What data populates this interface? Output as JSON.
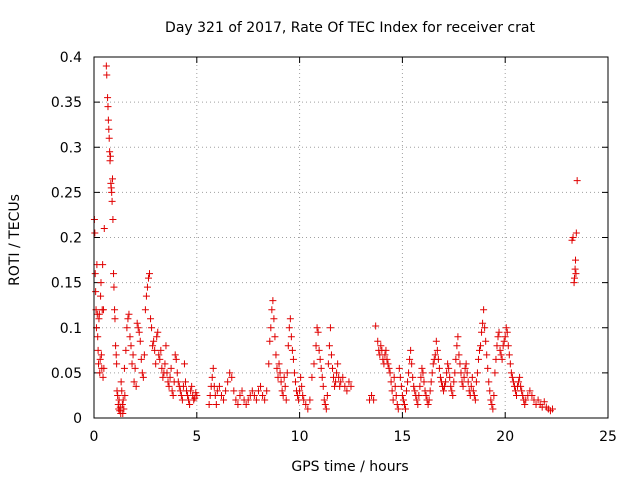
{
  "chart_data": {
    "type": "scatter",
    "title": "Day 321 of 2017, Rate Of TEC Index for receiver crat",
    "xlabel": "GPS time / hours",
    "ylabel": "ROTI / TECUs",
    "xlim": [
      0,
      25
    ],
    "ylim": [
      0,
      0.4
    ],
    "xticks": [
      "0",
      "5",
      "10",
      "15",
      "20",
      "25"
    ],
    "yticks": [
      "0",
      "0.05",
      "0.1",
      "0.15",
      "0.2",
      "0.25",
      "0.3",
      "0.35",
      "0.4"
    ],
    "grid": true,
    "marker": "+",
    "color": "#e00000",
    "points": [
      [
        0.02,
        0.22
      ],
      [
        0.04,
        0.205
      ],
      [
        0.06,
        0.16
      ],
      [
        0.08,
        0.14
      ],
      [
        0.1,
        0.12
      ],
      [
        0.12,
        0.1
      ],
      [
        0.14,
        0.17
      ],
      [
        0.16,
        0.115
      ],
      [
        0.18,
        0.09
      ],
      [
        0.2,
        0.075
      ],
      [
        0.22,
        0.06
      ],
      [
        0.24,
        0.11
      ],
      [
        0.26,
        0.115
      ],
      [
        0.28,
        0.05
      ],
      [
        0.3,
        0.065
      ],
      [
        0.32,
        0.135
      ],
      [
        0.34,
        0.15
      ],
      [
        0.36,
        0.07
      ],
      [
        0.38,
        0.055
      ],
      [
        0.4,
        0.12
      ],
      [
        0.42,
        0.17
      ],
      [
        0.44,
        0.045
      ],
      [
        0.46,
        0.12
      ],
      [
        0.48,
        0.055
      ],
      [
        0.5,
        0.21
      ],
      [
        0.6,
        0.39
      ],
      [
        0.62,
        0.38
      ],
      [
        0.66,
        0.355
      ],
      [
        0.68,
        0.345
      ],
      [
        0.7,
        0.33
      ],
      [
        0.72,
        0.32
      ],
      [
        0.74,
        0.31
      ],
      [
        0.76,
        0.295
      ],
      [
        0.78,
        0.285
      ],
      [
        0.8,
        0.29
      ],
      [
        0.82,
        0.26
      ],
      [
        0.84,
        0.255
      ],
      [
        0.86,
        0.25
      ],
      [
        0.88,
        0.24
      ],
      [
        0.9,
        0.265
      ],
      [
        0.92,
        0.22
      ],
      [
        0.95,
        0.16
      ],
      [
        0.97,
        0.145
      ],
      [
        1.0,
        0.12
      ],
      [
        1.02,
        0.11
      ],
      [
        1.05,
        0.08
      ],
      [
        1.08,
        0.07
      ],
      [
        1.1,
        0.06
      ],
      [
        1.12,
        0.03
      ],
      [
        1.15,
        0.025
      ],
      [
        1.18,
        0.015
      ],
      [
        1.2,
        0.01
      ],
      [
        1.22,
        0.02
      ],
      [
        1.25,
        0.008
      ],
      [
        1.28,
        0.012
      ],
      [
        1.3,
        0.005
      ],
      [
        1.32,
        0.04
      ],
      [
        1.35,
        0.03
      ],
      [
        1.38,
        0.015
      ],
      [
        1.4,
        0.005
      ],
      [
        1.42,
        0.02
      ],
      [
        1.45,
        0.01
      ],
      [
        1.48,
        0.055
      ],
      [
        1.5,
        0.025
      ],
      [
        1.55,
        0.075
      ],
      [
        1.6,
        0.1
      ],
      [
        1.65,
        0.11
      ],
      [
        1.7,
        0.115
      ],
      [
        1.75,
        0.09
      ],
      [
        1.8,
        0.08
      ],
      [
        1.85,
        0.06
      ],
      [
        1.9,
        0.07
      ],
      [
        1.95,
        0.04
      ],
      [
        2.0,
        0.055
      ],
      [
        2.05,
        0.035
      ],
      [
        2.1,
        0.105
      ],
      [
        2.15,
        0.1
      ],
      [
        2.2,
        0.095
      ],
      [
        2.25,
        0.085
      ],
      [
        2.3,
        0.065
      ],
      [
        2.35,
        0.05
      ],
      [
        2.4,
        0.045
      ],
      [
        2.45,
        0.07
      ],
      [
        2.5,
        0.12
      ],
      [
        2.55,
        0.135
      ],
      [
        2.6,
        0.145
      ],
      [
        2.65,
        0.155
      ],
      [
        2.7,
        0.16
      ],
      [
        2.75,
        0.11
      ],
      [
        2.8,
        0.1
      ],
      [
        2.85,
        0.08
      ],
      [
        2.9,
        0.085
      ],
      [
        2.95,
        0.075
      ],
      [
        3.0,
        0.06
      ],
      [
        3.05,
        0.09
      ],
      [
        3.1,
        0.095
      ],
      [
        3.15,
        0.07
      ],
      [
        3.2,
        0.065
      ],
      [
        3.25,
        0.075
      ],
      [
        3.3,
        0.055
      ],
      [
        3.35,
        0.045
      ],
      [
        3.4,
        0.05
      ],
      [
        3.45,
        0.06
      ],
      [
        3.5,
        0.08
      ],
      [
        3.55,
        0.05
      ],
      [
        3.6,
        0.04
      ],
      [
        3.65,
        0.035
      ],
      [
        3.7,
        0.045
      ],
      [
        3.75,
        0.055
      ],
      [
        3.8,
        0.03
      ],
      [
        3.85,
        0.025
      ],
      [
        3.9,
        0.04
      ],
      [
        3.95,
        0.07
      ],
      [
        4.0,
        0.065
      ],
      [
        4.05,
        0.05
      ],
      [
        4.1,
        0.04
      ],
      [
        4.15,
        0.035
      ],
      [
        4.2,
        0.03
      ],
      [
        4.25,
        0.025
      ],
      [
        4.3,
        0.02
      ],
      [
        4.35,
        0.035
      ],
      [
        4.4,
        0.06
      ],
      [
        4.45,
        0.04
      ],
      [
        4.5,
        0.03
      ],
      [
        4.55,
        0.025
      ],
      [
        4.6,
        0.02
      ],
      [
        4.65,
        0.015
      ],
      [
        4.7,
        0.03
      ],
      [
        4.75,
        0.035
      ],
      [
        4.8,
        0.025
      ],
      [
        4.85,
        0.02
      ],
      [
        4.9,
        0.022
      ],
      [
        4.95,
        0.028
      ],
      [
        5.0,
        0.025
      ],
      [
        5.6,
        0.015
      ],
      [
        5.65,
        0.025
      ],
      [
        5.7,
        0.035
      ],
      [
        5.75,
        0.045
      ],
      [
        5.8,
        0.055
      ],
      [
        5.85,
        0.035
      ],
      [
        5.9,
        0.025
      ],
      [
        5.95,
        0.015
      ],
      [
        6.0,
        0.03
      ],
      [
        6.1,
        0.035
      ],
      [
        6.2,
        0.025
      ],
      [
        6.3,
        0.02
      ],
      [
        6.4,
        0.03
      ],
      [
        6.5,
        0.04
      ],
      [
        6.6,
        0.05
      ],
      [
        6.7,
        0.045
      ],
      [
        6.8,
        0.03
      ],
      [
        6.9,
        0.02
      ],
      [
        7.0,
        0.015
      ],
      [
        7.1,
        0.025
      ],
      [
        7.2,
        0.03
      ],
      [
        7.3,
        0.02
      ],
      [
        7.4,
        0.015
      ],
      [
        7.5,
        0.02
      ],
      [
        7.6,
        0.025
      ],
      [
        7.7,
        0.03
      ],
      [
        7.8,
        0.025
      ],
      [
        7.9,
        0.02
      ],
      [
        8.0,
        0.03
      ],
      [
        8.1,
        0.035
      ],
      [
        8.2,
        0.025
      ],
      [
        8.3,
        0.02
      ],
      [
        8.4,
        0.03
      ],
      [
        8.5,
        0.06
      ],
      [
        8.55,
        0.085
      ],
      [
        8.6,
        0.1
      ],
      [
        8.65,
        0.12
      ],
      [
        8.7,
        0.13
      ],
      [
        8.75,
        0.11
      ],
      [
        8.8,
        0.09
      ],
      [
        8.85,
        0.07
      ],
      [
        8.9,
        0.055
      ],
      [
        8.95,
        0.045
      ],
      [
        9.0,
        0.06
      ],
      [
        9.05,
        0.05
      ],
      [
        9.1,
        0.04
      ],
      [
        9.15,
        0.03
      ],
      [
        9.2,
        0.025
      ],
      [
        9.25,
        0.045
      ],
      [
        9.3,
        0.035
      ],
      [
        9.35,
        0.02
      ],
      [
        9.4,
        0.05
      ],
      [
        9.45,
        0.08
      ],
      [
        9.5,
        0.1
      ],
      [
        9.55,
        0.11
      ],
      [
        9.6,
        0.09
      ],
      [
        9.65,
        0.075
      ],
      [
        9.7,
        0.065
      ],
      [
        9.75,
        0.05
      ],
      [
        9.8,
        0.04
      ],
      [
        9.85,
        0.03
      ],
      [
        9.9,
        0.025
      ],
      [
        9.95,
        0.02
      ],
      [
        10.0,
        0.03
      ],
      [
        10.05,
        0.045
      ],
      [
        10.1,
        0.035
      ],
      [
        10.15,
        0.025
      ],
      [
        10.2,
        0.02
      ],
      [
        10.3,
        0.015
      ],
      [
        10.4,
        0.01
      ],
      [
        10.5,
        0.02
      ],
      [
        10.6,
        0.045
      ],
      [
        10.7,
        0.06
      ],
      [
        10.8,
        0.08
      ],
      [
        10.85,
        0.1
      ],
      [
        10.9,
        0.095
      ],
      [
        10.95,
        0.075
      ],
      [
        11.0,
        0.065
      ],
      [
        11.05,
        0.055
      ],
      [
        11.1,
        0.045
      ],
      [
        11.15,
        0.035
      ],
      [
        11.2,
        0.02
      ],
      [
        11.25,
        0.015
      ],
      [
        11.3,
        0.01
      ],
      [
        11.35,
        0.025
      ],
      [
        11.4,
        0.06
      ],
      [
        11.45,
        0.08
      ],
      [
        11.5,
        0.1
      ],
      [
        11.55,
        0.07
      ],
      [
        11.6,
        0.055
      ],
      [
        11.65,
        0.045
      ],
      [
        11.7,
        0.035
      ],
      [
        11.75,
        0.04
      ],
      [
        11.8,
        0.05
      ],
      [
        11.85,
        0.06
      ],
      [
        11.9,
        0.045
      ],
      [
        11.95,
        0.035
      ],
      [
        12.0,
        0.04
      ],
      [
        12.1,
        0.045
      ],
      [
        12.2,
        0.035
      ],
      [
        12.3,
        0.03
      ],
      [
        12.4,
        0.04
      ],
      [
        12.5,
        0.035
      ],
      [
        13.4,
        0.02
      ],
      [
        13.5,
        0.025
      ],
      [
        13.6,
        0.02
      ],
      [
        13.7,
        0.102
      ],
      [
        13.8,
        0.085
      ],
      [
        13.85,
        0.075
      ],
      [
        13.9,
        0.07
      ],
      [
        13.95,
        0.08
      ],
      [
        14.0,
        0.075
      ],
      [
        14.05,
        0.065
      ],
      [
        14.1,
        0.06
      ],
      [
        14.15,
        0.07
      ],
      [
        14.2,
        0.075
      ],
      [
        14.25,
        0.065
      ],
      [
        14.3,
        0.06
      ],
      [
        14.35,
        0.055
      ],
      [
        14.4,
        0.05
      ],
      [
        14.45,
        0.04
      ],
      [
        14.5,
        0.03
      ],
      [
        14.55,
        0.02
      ],
      [
        14.6,
        0.045
      ],
      [
        14.65,
        0.035
      ],
      [
        14.7,
        0.025
      ],
      [
        14.75,
        0.015
      ],
      [
        14.8,
        0.01
      ],
      [
        14.85,
        0.055
      ],
      [
        14.9,
        0.045
      ],
      [
        14.95,
        0.035
      ],
      [
        15.0,
        0.025
      ],
      [
        15.05,
        0.02
      ],
      [
        15.1,
        0.015
      ],
      [
        15.15,
        0.01
      ],
      [
        15.2,
        0.03
      ],
      [
        15.25,
        0.04
      ],
      [
        15.3,
        0.05
      ],
      [
        15.35,
        0.065
      ],
      [
        15.4,
        0.075
      ],
      [
        15.45,
        0.06
      ],
      [
        15.5,
        0.045
      ],
      [
        15.55,
        0.035
      ],
      [
        15.6,
        0.03
      ],
      [
        15.65,
        0.025
      ],
      [
        15.7,
        0.02
      ],
      [
        15.75,
        0.015
      ],
      [
        15.8,
        0.025
      ],
      [
        15.85,
        0.035
      ],
      [
        15.9,
        0.045
      ],
      [
        15.95,
        0.055
      ],
      [
        16.0,
        0.05
      ],
      [
        16.05,
        0.04
      ],
      [
        16.1,
        0.03
      ],
      [
        16.15,
        0.025
      ],
      [
        16.2,
        0.02
      ],
      [
        16.25,
        0.015
      ],
      [
        16.3,
        0.02
      ],
      [
        16.35,
        0.03
      ],
      [
        16.4,
        0.04
      ],
      [
        16.45,
        0.05
      ],
      [
        16.5,
        0.06
      ],
      [
        16.55,
        0.065
      ],
      [
        16.6,
        0.07
      ],
      [
        16.65,
        0.085
      ],
      [
        16.7,
        0.075
      ],
      [
        16.75,
        0.065
      ],
      [
        16.8,
        0.055
      ],
      [
        16.85,
        0.045
      ],
      [
        16.9,
        0.04
      ],
      [
        16.95,
        0.035
      ],
      [
        17.0,
        0.03
      ],
      [
        17.05,
        0.035
      ],
      [
        17.1,
        0.04
      ],
      [
        17.15,
        0.05
      ],
      [
        17.2,
        0.06
      ],
      [
        17.25,
        0.055
      ],
      [
        17.3,
        0.045
      ],
      [
        17.35,
        0.035
      ],
      [
        17.4,
        0.03
      ],
      [
        17.45,
        0.025
      ],
      [
        17.5,
        0.04
      ],
      [
        17.55,
        0.05
      ],
      [
        17.6,
        0.065
      ],
      [
        17.65,
        0.08
      ],
      [
        17.7,
        0.09
      ],
      [
        17.75,
        0.07
      ],
      [
        17.8,
        0.06
      ],
      [
        17.85,
        0.05
      ],
      [
        17.9,
        0.04
      ],
      [
        17.95,
        0.035
      ],
      [
        18.0,
        0.045
      ],
      [
        18.05,
        0.055
      ],
      [
        18.1,
        0.06
      ],
      [
        18.15,
        0.05
      ],
      [
        18.2,
        0.04
      ],
      [
        18.25,
        0.03
      ],
      [
        18.3,
        0.025
      ],
      [
        18.35,
        0.035
      ],
      [
        18.4,
        0.045
      ],
      [
        18.45,
        0.03
      ],
      [
        18.5,
        0.025
      ],
      [
        18.55,
        0.02
      ],
      [
        18.6,
        0.04
      ],
      [
        18.65,
        0.05
      ],
      [
        18.7,
        0.065
      ],
      [
        18.75,
        0.075
      ],
      [
        18.8,
        0.08
      ],
      [
        18.85,
        0.095
      ],
      [
        18.9,
        0.105
      ],
      [
        18.95,
        0.12
      ],
      [
        19.0,
        0.1
      ],
      [
        19.05,
        0.085
      ],
      [
        19.1,
        0.07
      ],
      [
        19.15,
        0.055
      ],
      [
        19.2,
        0.04
      ],
      [
        19.25,
        0.03
      ],
      [
        19.3,
        0.02
      ],
      [
        19.35,
        0.015
      ],
      [
        19.4,
        0.01
      ],
      [
        19.45,
        0.025
      ],
      [
        19.5,
        0.05
      ],
      [
        19.55,
        0.065
      ],
      [
        19.6,
        0.08
      ],
      [
        19.65,
        0.09
      ],
      [
        19.7,
        0.095
      ],
      [
        19.75,
        0.075
      ],
      [
        19.8,
        0.07
      ],
      [
        19.85,
        0.065
      ],
      [
        19.9,
        0.08
      ],
      [
        19.95,
        0.085
      ],
      [
        20.0,
        0.09
      ],
      [
        20.05,
        0.1
      ],
      [
        20.1,
        0.095
      ],
      [
        20.15,
        0.08
      ],
      [
        20.2,
        0.07
      ],
      [
        20.25,
        0.06
      ],
      [
        20.3,
        0.05
      ],
      [
        20.35,
        0.045
      ],
      [
        20.4,
        0.04
      ],
      [
        20.45,
        0.035
      ],
      [
        20.5,
        0.03
      ],
      [
        20.55,
        0.025
      ],
      [
        20.6,
        0.035
      ],
      [
        20.65,
        0.04
      ],
      [
        20.7,
        0.045
      ],
      [
        20.75,
        0.035
      ],
      [
        20.8,
        0.03
      ],
      [
        20.85,
        0.025
      ],
      [
        20.9,
        0.02
      ],
      [
        20.95,
        0.015
      ],
      [
        21.0,
        0.02
      ],
      [
        21.1,
        0.025
      ],
      [
        21.2,
        0.03
      ],
      [
        21.3,
        0.025
      ],
      [
        21.4,
        0.02
      ],
      [
        21.5,
        0.015
      ],
      [
        21.6,
        0.02
      ],
      [
        21.7,
        0.015
      ],
      [
        21.8,
        0.012
      ],
      [
        21.9,
        0.018
      ],
      [
        22.0,
        0.012
      ],
      [
        22.1,
        0.01
      ],
      [
        22.2,
        0.008
      ],
      [
        22.3,
        0.01
      ],
      [
        23.25,
        0.197
      ],
      [
        23.3,
        0.2
      ],
      [
        23.35,
        0.15
      ],
      [
        23.37,
        0.155
      ],
      [
        23.4,
        0.165
      ],
      [
        23.42,
        0.175
      ],
      [
        23.44,
        0.16
      ],
      [
        23.46,
        0.205
      ],
      [
        23.5,
        0.263
      ]
    ]
  }
}
